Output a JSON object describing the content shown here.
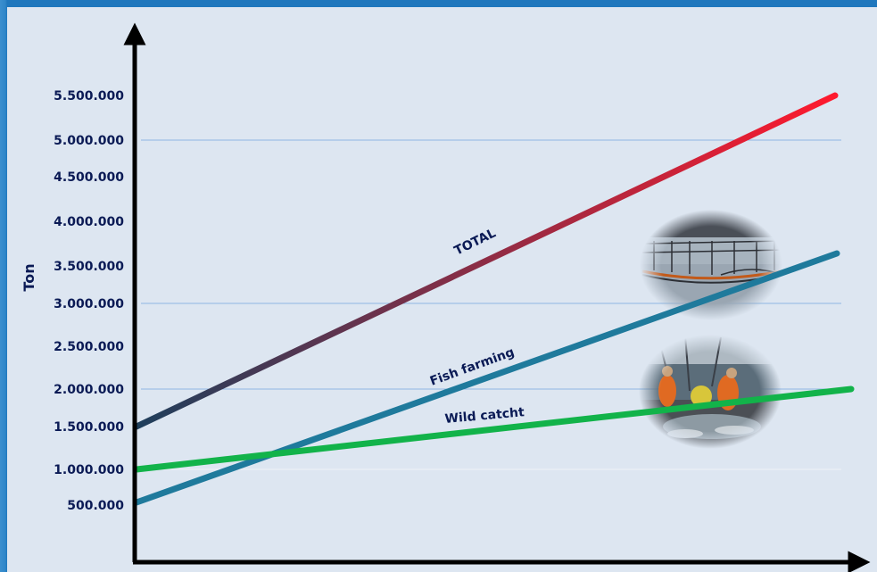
{
  "chart_data": {
    "type": "line",
    "title": "",
    "xlabel": "",
    "ylabel": "Ton",
    "grid": true,
    "x": [
      0,
      1
    ],
    "y_tick_labels": [
      "500.000",
      "1.000.000",
      "1.500.000",
      "2.000.000",
      "2.500.000",
      "3.000.000",
      "3.500.000",
      "4.000.000",
      "4.500.000",
      "5.000.000",
      "5.500.000"
    ],
    "y_ticks": [
      500000,
      1000000,
      1500000,
      2000000,
      2500000,
      3000000,
      3500000,
      4000000,
      4500000,
      5000000,
      5500000
    ],
    "series": [
      {
        "name": "TOTAL",
        "values": [
          1500000,
          5500000
        ],
        "color_start": "#1e3f5c",
        "color_end": "#ff1a2e"
      },
      {
        "name": "Fish farming",
        "values": [
          500000,
          3500000
        ],
        "color": "#1f7a9c"
      },
      {
        "name": "Wild catcht",
        "values": [
          1000000,
          2000000
        ],
        "color": "#12b34a"
      }
    ],
    "photos": [
      {
        "name": "fish-farm-cages-photo"
      },
      {
        "name": "fishermen-on-boat-photo"
      }
    ]
  }
}
